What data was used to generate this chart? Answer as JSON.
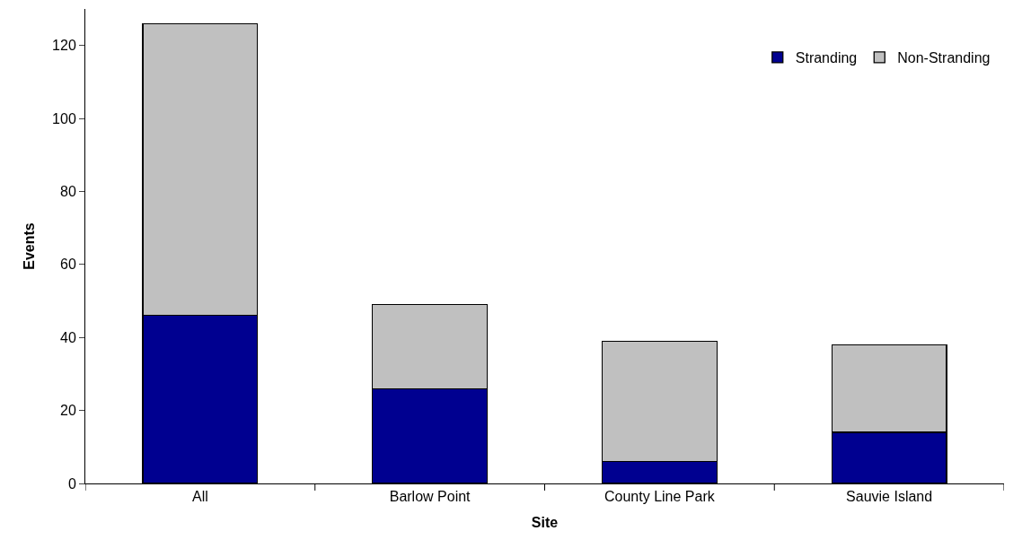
{
  "chart_data": {
    "type": "bar",
    "stacked": true,
    "xlabel": "Site",
    "ylabel": "Events",
    "categories": [
      "All",
      "Barlow Point",
      "County Line Park",
      "Sauvie Island"
    ],
    "series": [
      {
        "name": "Stranding",
        "color": "#000090",
        "values": [
          46,
          26,
          6,
          14
        ]
      },
      {
        "name": "Non-Stranding",
        "color": "#c0c0c0",
        "values": [
          80,
          23,
          33,
          24
        ]
      }
    ],
    "ylim": [
      0,
      130
    ],
    "yticks": [
      0,
      20,
      40,
      60,
      80,
      100,
      120
    ],
    "legend": "top right"
  }
}
